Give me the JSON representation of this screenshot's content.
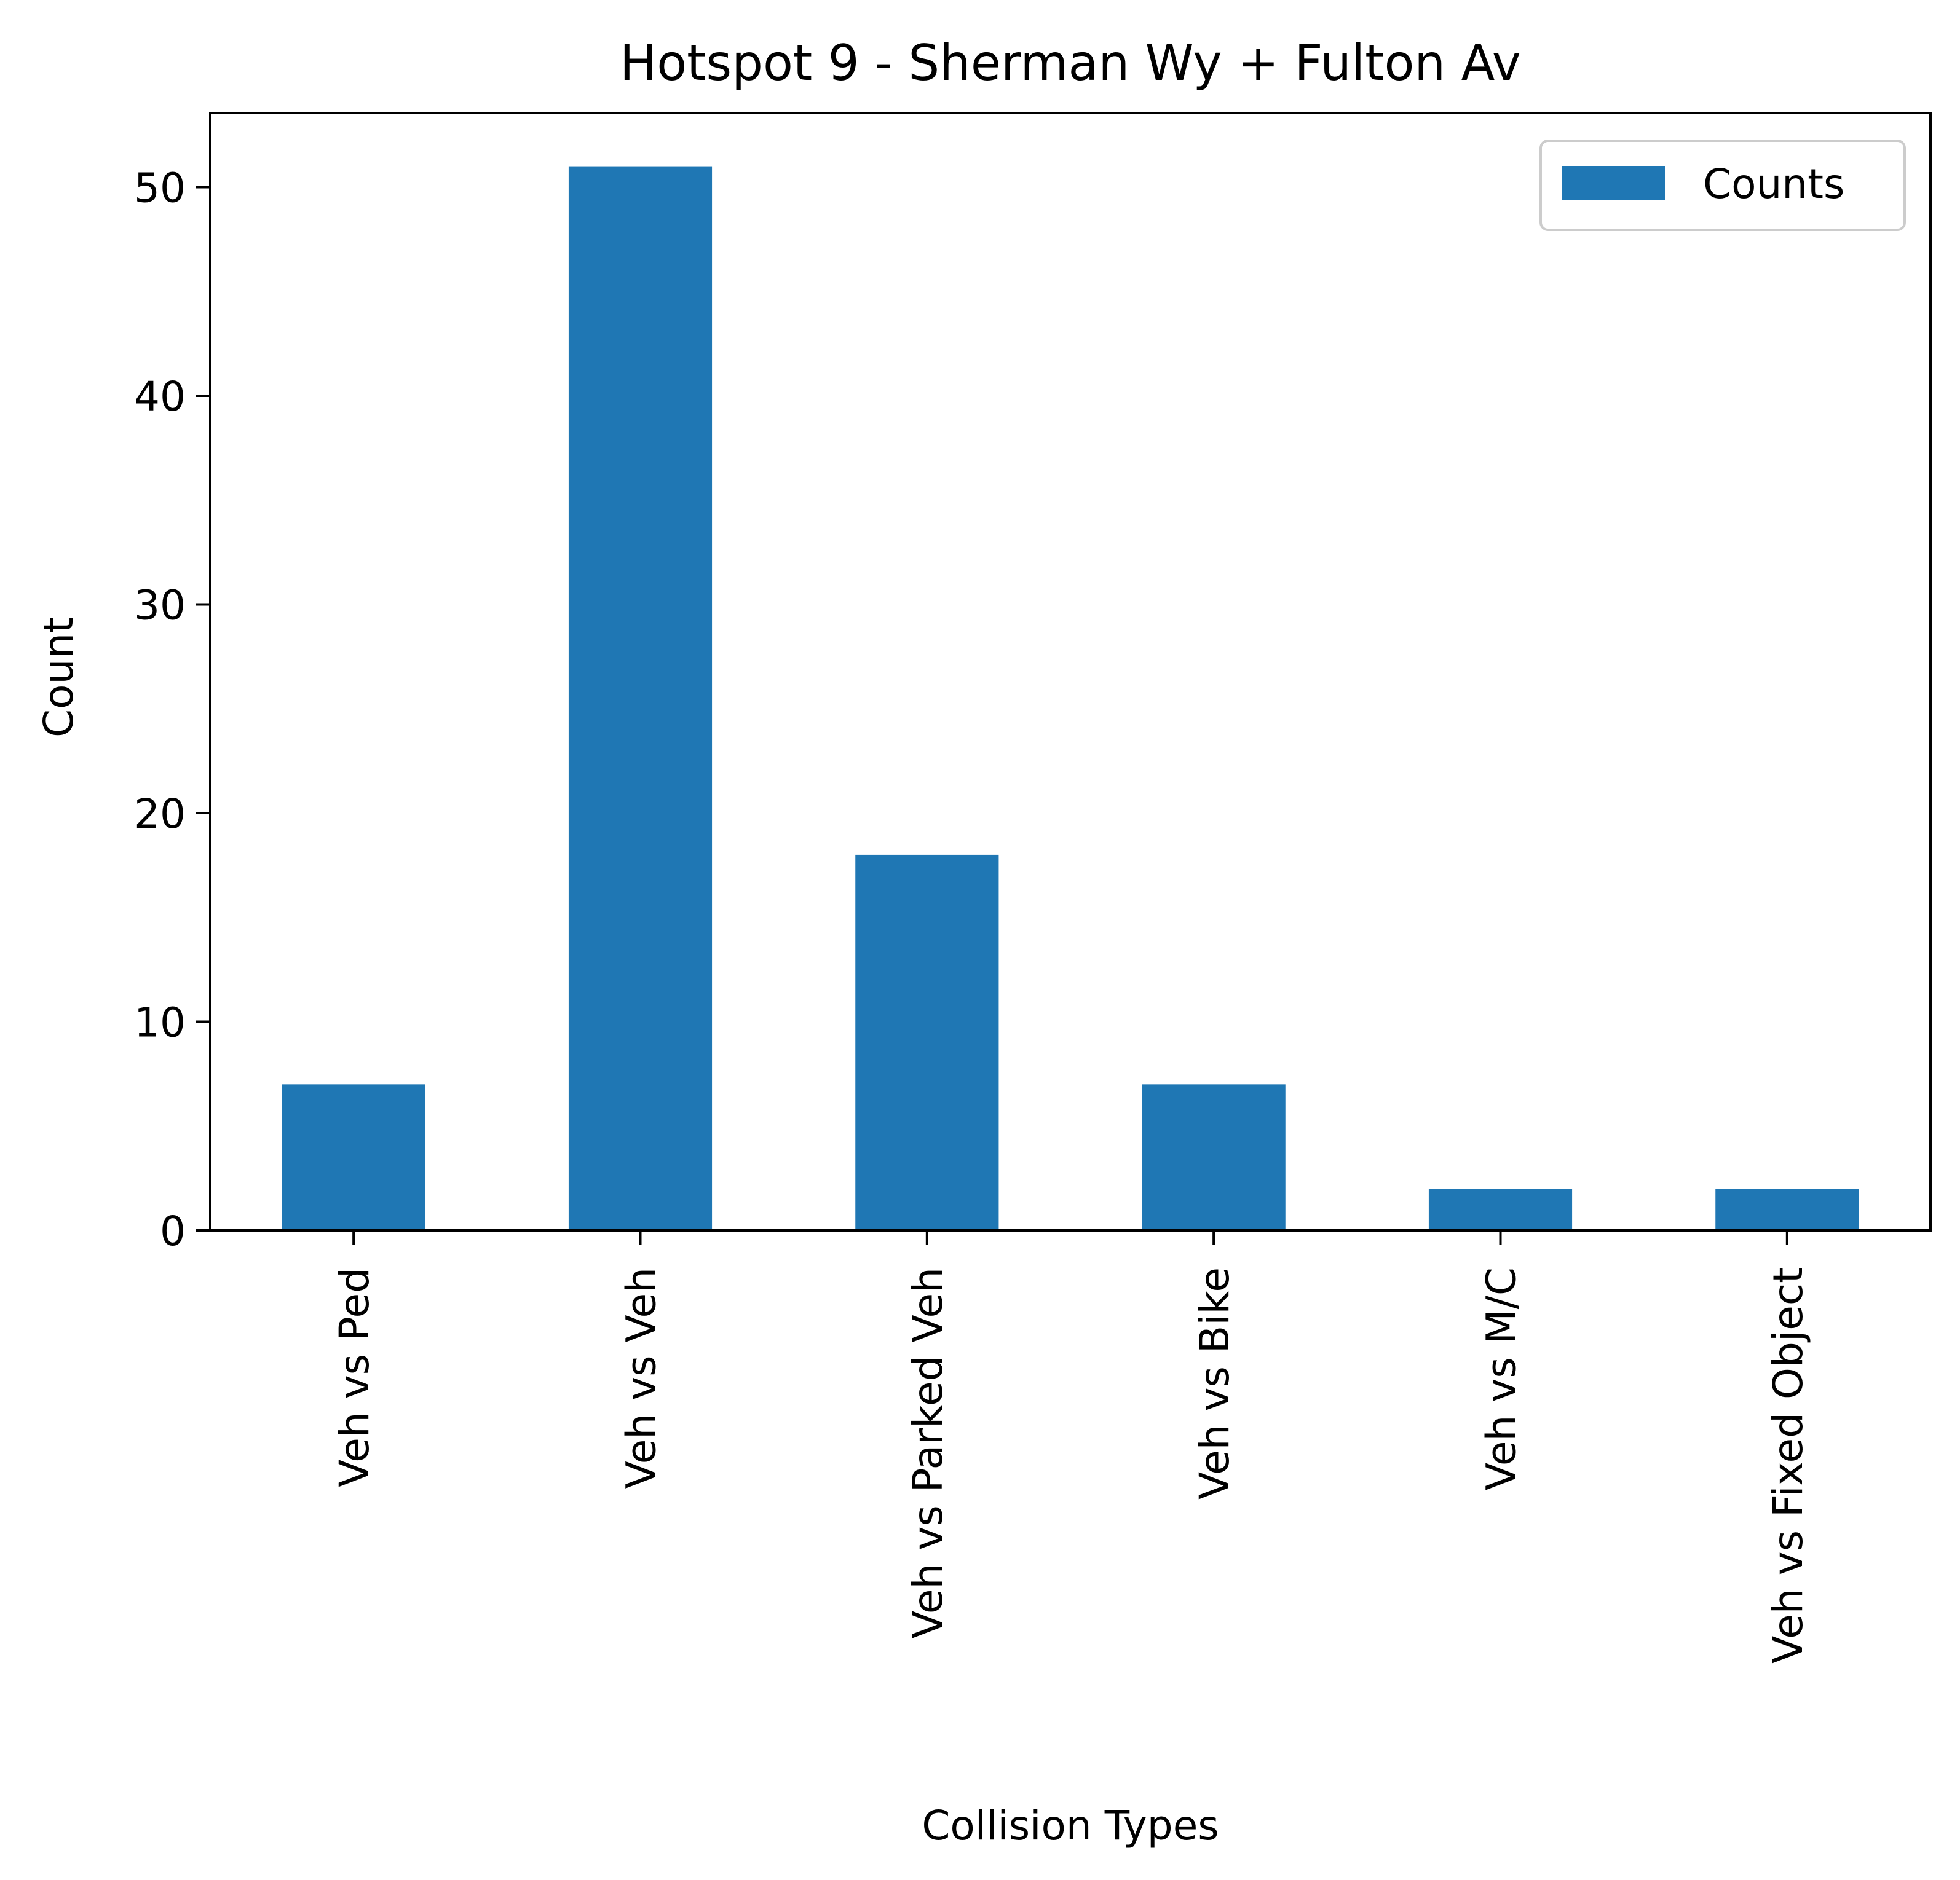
{
  "chart_data": {
    "type": "bar",
    "title": "Hotspot 9 - Sherman Wy + Fulton Av",
    "xlabel": "Collision Types",
    "ylabel": "Count",
    "categories": [
      "Veh vs Ped",
      "Veh vs Veh",
      "Veh vs Parked Veh",
      "Veh vs Bike",
      "Veh vs M/C",
      "Veh vs Fixed Object"
    ],
    "series": [
      {
        "name": "Counts",
        "values": [
          7,
          51,
          18,
          7,
          2,
          2
        ],
        "color": "#1f77b4"
      }
    ],
    "ylim": [
      0,
      53.55
    ],
    "yticks": [
      0,
      10,
      20,
      30,
      40,
      50
    ],
    "grid": false,
    "legend_position": "top-right"
  }
}
